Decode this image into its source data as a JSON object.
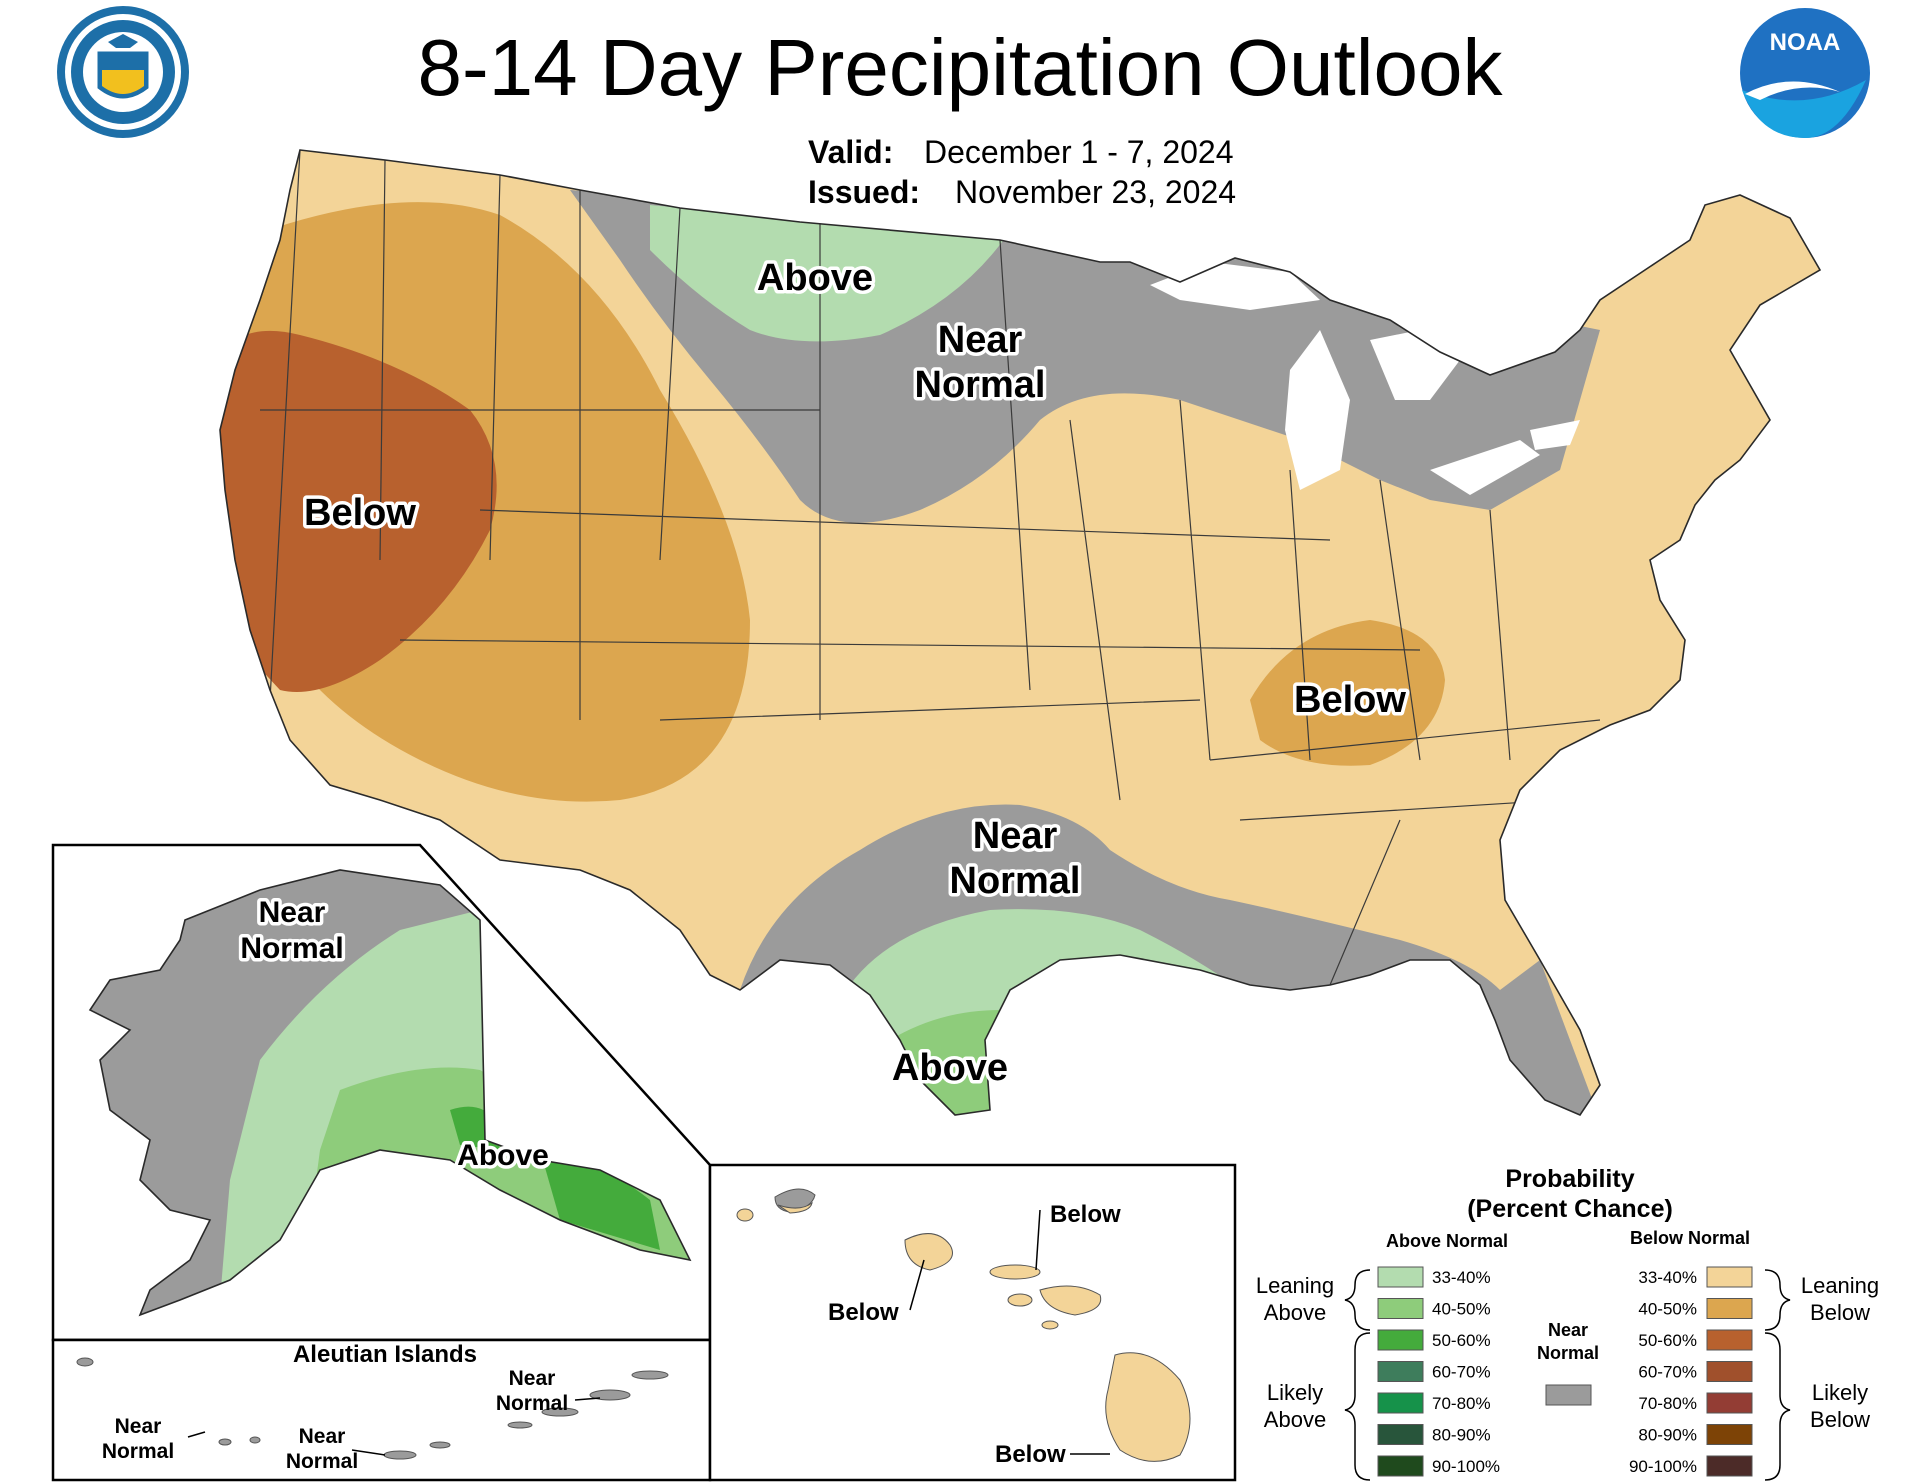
{
  "title": "8-14 Day Precipitation Outlook",
  "valid_label": "Valid:",
  "valid_value": "December 1 - 7, 2024",
  "issued_label": "Issued:",
  "issued_value": "November 23, 2024",
  "logos": {
    "commerce_text": "DEPARTMENT OF COMMERCE • UNITED STATES OF AMERICA",
    "noaa_text": "NOAA"
  },
  "colors": {
    "below_33_40": "#f3d498",
    "below_40_50": "#dca64f",
    "below_50_60": "#b8612e",
    "above_33_40": "#b3dcaf",
    "above_40_50": "#8ecc7b",
    "above_50_60": "#44ab3c",
    "near_normal": "#9b9b9b",
    "background": "#ffffff",
    "lakes": "#ffffff"
  },
  "map_labels": {
    "conus": {
      "above_north": "Above",
      "near_normal_north_1": "Near",
      "near_normal_north_2": "Normal",
      "below_west": "Below",
      "below_east": "Below",
      "near_normal_south_1": "Near",
      "near_normal_south_2": "Normal",
      "above_south": "Above"
    },
    "alaska": {
      "near_normal_1": "Near",
      "near_normal_2": "Normal",
      "above": "Above"
    },
    "aleutians": {
      "title": "Aleutian Islands",
      "near_a_1": "Near",
      "near_a_2": "Normal",
      "near_b_1": "Near",
      "near_b_2": "Normal",
      "near_c_1": "Near",
      "near_c_2": "Normal"
    },
    "hawaii": {
      "below_1": "Below",
      "below_2": "Below",
      "below_3": "Below"
    }
  },
  "legend": {
    "title_1": "Probability",
    "title_2": "(Percent Chance)",
    "above_header": "Above Normal",
    "below_header": "Below Normal",
    "near_1": "Near",
    "near_2": "Normal",
    "leaning_above_1": "Leaning",
    "leaning_above_2": "Above",
    "likely_above_1": "Likely",
    "likely_above_2": "Above",
    "leaning_below_1": "Leaning",
    "leaning_below_2": "Below",
    "likely_below_1": "Likely",
    "likely_below_2": "Below",
    "above_items": [
      {
        "label": "33-40%",
        "color": "#b3dcaf"
      },
      {
        "label": "40-50%",
        "color": "#8ecc7b"
      },
      {
        "label": "50-60%",
        "color": "#44ab3c"
      },
      {
        "label": "60-70%",
        "color": "#3e7d5c"
      },
      {
        "label": "70-80%",
        "color": "#16924a"
      },
      {
        "label": "80-90%",
        "color": "#28553b"
      },
      {
        "label": "90-100%",
        "color": "#1f4a1d"
      }
    ],
    "below_items": [
      {
        "label": "33-40%",
        "color": "#f3d498"
      },
      {
        "label": "40-50%",
        "color": "#dca64f"
      },
      {
        "label": "50-60%",
        "color": "#b8612e"
      },
      {
        "label": "60-70%",
        "color": "#a0502c"
      },
      {
        "label": "70-80%",
        "color": "#933d34"
      },
      {
        "label": "80-90%",
        "color": "#7d4306"
      },
      {
        "label": "90-100%",
        "color": "#4c2b28"
      }
    ]
  }
}
